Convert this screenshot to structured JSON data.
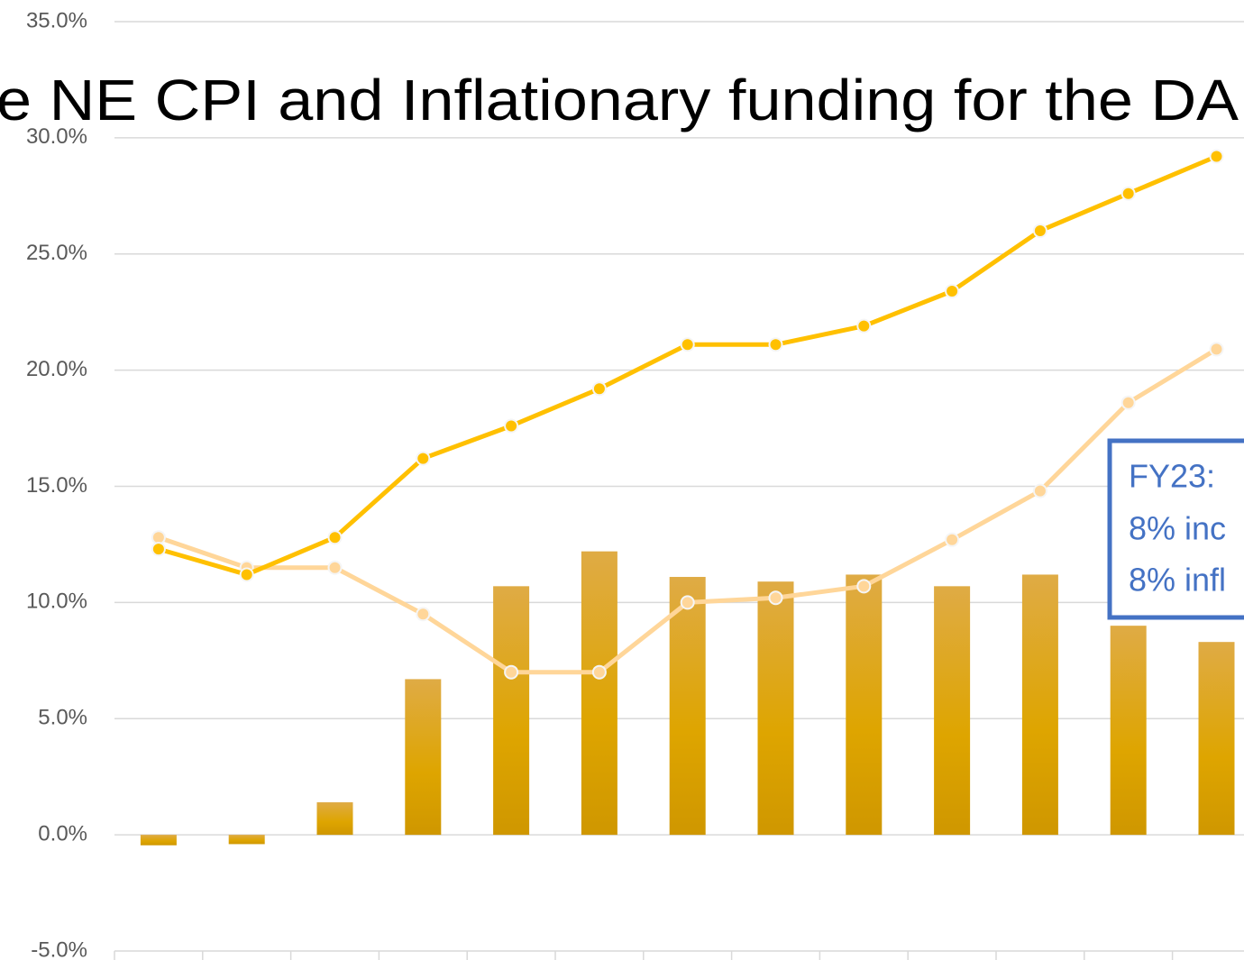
{
  "chart_data": {
    "type": "bar",
    "title": "e NE CPI and Inflationary funding for the DA",
    "annotation": [
      "FY23:",
      "8% inc",
      "8% infl"
    ],
    "categories": [
      null,
      null,
      null,
      null,
      null,
      null,
      null,
      null,
      null,
      null,
      null,
      null,
      null
    ],
    "series": [
      {
        "type": "bar",
        "color": "#e0a800",
        "values": [
          -0.45,
          -0.4,
          1.4,
          6.7,
          10.7,
          12.2,
          11.1,
          10.9,
          11.2,
          10.7,
          11.2,
          9.0,
          8.3
        ]
      },
      {
        "type": "line",
        "color": "#ffd699",
        "values": [
          12.8,
          11.5,
          11.5,
          9.5,
          7.0,
          7.0,
          10.0,
          10.2,
          10.7,
          12.7,
          14.8,
          18.6,
          20.9
        ]
      },
      {
        "type": "line",
        "color": "#ffc000",
        "values": [
          12.3,
          11.2,
          12.8,
          16.2,
          17.6,
          19.2,
          21.1,
          21.1,
          21.9,
          23.4,
          26.0,
          27.6,
          29.2
        ]
      }
    ],
    "ylim": [
      -5,
      35
    ],
    "yticks": [
      {
        "value": -5,
        "label": "-5.0%"
      },
      {
        "value": 0,
        "label": "0.0%"
      },
      {
        "value": 5,
        "label": "5.0%"
      },
      {
        "value": 10,
        "label": "10.0%"
      },
      {
        "value": 15,
        "label": "15.0%"
      },
      {
        "value": 20,
        "label": "20.0%"
      },
      {
        "value": 25,
        "label": "25.0%"
      },
      {
        "value": 30,
        "label": "30.0%"
      },
      {
        "value": 35,
        "label": "35.0%"
      }
    ],
    "grid": true
  }
}
